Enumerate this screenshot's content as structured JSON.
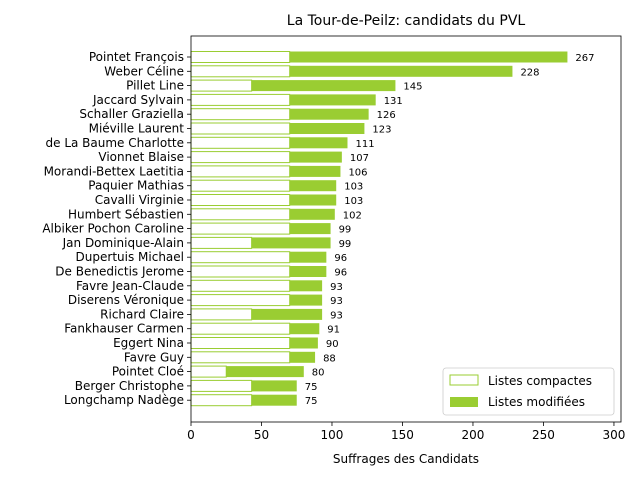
{
  "chart_data": {
    "type": "bar",
    "orientation": "horizontal",
    "stacked": true,
    "title": "La Tour-de-Peilz: candidats du PVL",
    "xlabel": "Suffrages des Candidats",
    "ylabel": "",
    "xlim": [
      0,
      305
    ],
    "xticks": [
      0,
      50,
      100,
      150,
      200,
      250,
      300
    ],
    "legend_position": "bottom-right",
    "colors": {
      "compact_edge": "#9acd32",
      "compact_fill": "#ffffff",
      "modified": "#9acd32"
    },
    "series": [
      {
        "name": "Listes compactes",
        "values": [
          70,
          70,
          43,
          70,
          70,
          70,
          70,
          70,
          70,
          70,
          70,
          70,
          70,
          43,
          70,
          70,
          70,
          70,
          43,
          70,
          70,
          70,
          25,
          43,
          43
        ]
      },
      {
        "name": "Listes modifiées",
        "values": [
          197,
          158,
          102,
          61,
          56,
          53,
          41,
          37,
          36,
          33,
          33,
          32,
          29,
          56,
          26,
          26,
          23,
          23,
          50,
          21,
          20,
          18,
          55,
          32,
          32
        ]
      }
    ],
    "categories": [
      "Pointet François",
      "Weber Céline",
      "Pillet Line",
      "Jaccard Sylvain",
      "Schaller Graziella",
      "Miéville Laurent",
      "de La Baume Charlotte",
      "Vionnet Blaise",
      "Morandi-Bettex Laetitia",
      "Paquier Mathias",
      "Cavalli Virginie",
      "Humbert Sébastien",
      "Albiker Pochon Caroline",
      "Jan Dominique-Alain",
      "Dupertuis Michael",
      "De Benedictis Jerome",
      "Favre Jean-Claude",
      "Diserens Véronique",
      "Richard Claire",
      "Fankhauser Carmen",
      "Eggert Nina",
      "Favre Guy",
      "Pointet Cloé",
      "Berger Christophe",
      "Longchamp Nadège"
    ],
    "totals": [
      267,
      228,
      145,
      131,
      126,
      123,
      111,
      107,
      106,
      103,
      103,
      102,
      99,
      99,
      96,
      96,
      93,
      93,
      93,
      91,
      90,
      88,
      80,
      75,
      75
    ]
  }
}
